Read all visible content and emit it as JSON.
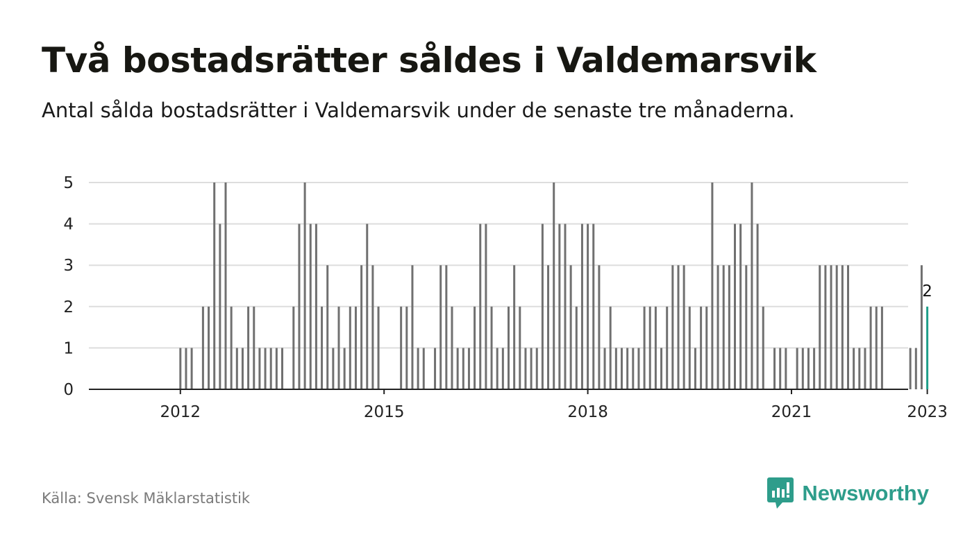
{
  "title": "Två bostadsrätter såldes i Valdemarsvik",
  "subtitle": "Antal sålda bostadsrätter i Valdemarsvik under de senaste tre månaderna.",
  "source": "Källa: Svensk Mäklarstatistik",
  "brand": {
    "name": "Newsworthy",
    "icon": "newsworthy-logo-icon",
    "color": "#2e9d8b"
  },
  "colors": {
    "bar": "#707070",
    "highlight": "#1f9e89",
    "grid": "#dddddd",
    "axis": "#222222"
  },
  "chart_data": {
    "type": "bar",
    "x_unit": "month",
    "start": "2011-01",
    "end": "2023-01",
    "ylim": [
      0,
      5
    ],
    "yticks": [
      0,
      1,
      2,
      3,
      4,
      5
    ],
    "xticks": [
      "2012",
      "2015",
      "2018",
      "2021",
      "2023"
    ],
    "grid": true,
    "highlight_last": true,
    "last_value_label": "2",
    "values": [
      0,
      0,
      0,
      0,
      0,
      0,
      0,
      0,
      0,
      0,
      0,
      0,
      1,
      1,
      1,
      0,
      2,
      2,
      5,
      4,
      5,
      2,
      1,
      1,
      2,
      2,
      1,
      1,
      1,
      1,
      1,
      0,
      2,
      4,
      5,
      4,
      4,
      2,
      3,
      1,
      2,
      1,
      2,
      2,
      3,
      4,
      3,
      2,
      0,
      0,
      0,
      2,
      2,
      3,
      1,
      1,
      0,
      1,
      3,
      3,
      2,
      1,
      1,
      1,
      2,
      4,
      4,
      2,
      1,
      1,
      2,
      3,
      2,
      1,
      1,
      1,
      4,
      3,
      5,
      4,
      4,
      3,
      2,
      4,
      4,
      4,
      3,
      1,
      2,
      1,
      1,
      1,
      1,
      1,
      2,
      2,
      2,
      1,
      2,
      3,
      3,
      3,
      2,
      1,
      2,
      2,
      5,
      3,
      3,
      3,
      4,
      4,
      3,
      5,
      4,
      2,
      0,
      1,
      1,
      1,
      0,
      1,
      1,
      1,
      1,
      3,
      3,
      3,
      3,
      3,
      3,
      1,
      1,
      1,
      2,
      2,
      2,
      0,
      0,
      0,
      0,
      1,
      1,
      3,
      2
    ]
  }
}
